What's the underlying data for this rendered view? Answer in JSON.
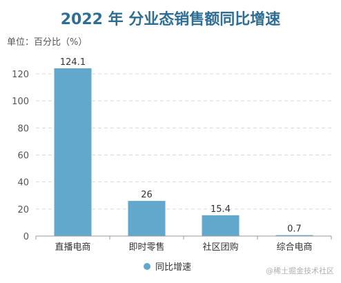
{
  "chart_data": {
    "type": "bar",
    "title": "2022 年 分业态销售额同比增速",
    "unit_label": "单位：百分比（%）",
    "categories": [
      "直播电商",
      "即时零售",
      "社区团购",
      "综合电商"
    ],
    "series": [
      {
        "name": "同比增速",
        "values": [
          124.1,
          26,
          15.4,
          0.7
        ],
        "data_labels": [
          "124.1",
          "26",
          "15.4",
          "0.7"
        ]
      }
    ],
    "ylim": [
      0,
      120
    ],
    "yticks": [
      "0",
      "20",
      "40",
      "60",
      "80",
      "100",
      "120"
    ],
    "grid": true,
    "legend_position": "bottom"
  },
  "watermark": "@稀土掘金技术社区",
  "colors": {
    "title": "#2f6e94",
    "bar": "#62a8cc",
    "axis_text": "#555555",
    "grid": "#d8d8d8"
  }
}
